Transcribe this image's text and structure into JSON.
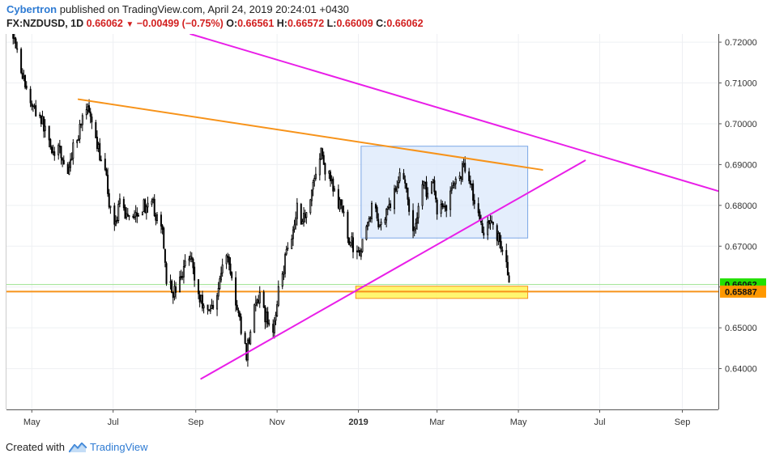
{
  "header": {
    "author": "Cybertron",
    "published_text": " published on TradingView.com, April 24, 2019 20:24:01 +0430",
    "symbol": "FX:NZDUSD, 1D",
    "last": "0.66062",
    "change": "−0.00499 (−0.75%)",
    "open_label": "O:",
    "open": "0.66561",
    "high_label": "H:",
    "high": "0.66572",
    "low_label": "L:",
    "low": "0.66009",
    "close_label": "C:",
    "close": "0.66062"
  },
  "footer": {
    "created_with": "Created with",
    "brand": "TradingView"
  },
  "colors": {
    "bullish_candle": "#ffffff",
    "bearish_candle": "#000000",
    "trendline_orange": "#f7931a",
    "trendline_magenta": "#e91ee8",
    "range_box": "#dbe8fb",
    "support_zone": "#fff560",
    "price_badge_green": "#22e000",
    "price_badge_orange": "#ff9800",
    "grid": "#eef0f3"
  },
  "chart_data": {
    "type": "candlestick",
    "symbol": "FX:NZDUSD",
    "timeframe": "1D",
    "ylim": [
      0.63,
      0.722
    ],
    "y_ticks": [
      0.64,
      0.65,
      0.66,
      0.67,
      0.68,
      0.69,
      0.7,
      0.71,
      0.72
    ],
    "y_tick_labels": [
      "0.64000",
      "0.65000",
      "0.66000",
      "0.67000",
      "0.68000",
      "0.69000",
      "0.70000",
      "0.71000",
      "0.72000"
    ],
    "x_ticks": [
      "May",
      "Jul",
      "Sep",
      "Nov",
      "2019",
      "Mar",
      "May",
      "Jul",
      "Sep"
    ],
    "x_tick_dates": [
      "2018-05-01",
      "2018-07-01",
      "2018-09-01",
      "2018-11-01",
      "2019-01-01",
      "2019-03-01",
      "2019-05-01",
      "2019-07-01",
      "2019-09-01"
    ],
    "xlim": [
      "2018-04-12",
      "2019-09-28"
    ],
    "last_price": {
      "label": "0.66062",
      "value": 0.66062
    },
    "support_level": {
      "label": "0.65887",
      "value": 0.65887
    },
    "close_path": [
      [
        "2018-04-17",
        0.7225
      ],
      [
        "2018-04-20",
        0.7185
      ],
      [
        "2018-04-24",
        0.712
      ],
      [
        "2018-04-27",
        0.708
      ],
      [
        "2018-05-02",
        0.704
      ],
      [
        "2018-05-07",
        0.702
      ],
      [
        "2018-05-11",
        0.6985
      ],
      [
        "2018-05-15",
        0.695
      ],
      [
        "2018-05-18",
        0.692
      ],
      [
        "2018-05-22",
        0.6935
      ],
      [
        "2018-05-25",
        0.69
      ],
      [
        "2018-05-29",
        0.688
      ],
      [
        "2018-06-01",
        0.695
      ],
      [
        "2018-06-05",
        0.6975
      ],
      [
        "2018-06-08",
        0.7025
      ],
      [
        "2018-06-12",
        0.7035
      ],
      [
        "2018-06-15",
        0.699
      ],
      [
        "2018-06-19",
        0.694
      ],
      [
        "2018-06-22",
        0.692
      ],
      [
        "2018-06-26",
        0.686
      ],
      [
        "2018-06-29",
        0.6785
      ],
      [
        "2018-07-03",
        0.676
      ],
      [
        "2018-07-06",
        0.68
      ],
      [
        "2018-07-10",
        0.678
      ],
      [
        "2018-07-13",
        0.678
      ],
      [
        "2018-07-17",
        0.678
      ],
      [
        "2018-07-20",
        0.679
      ],
      [
        "2018-07-24",
        0.68
      ],
      [
        "2018-07-27",
        0.679
      ],
      [
        "2018-07-31",
        0.68
      ],
      [
        "2018-08-03",
        0.676
      ],
      [
        "2018-08-07",
        0.674
      ],
      [
        "2018-08-10",
        0.6625
      ],
      [
        "2018-08-14",
        0.659
      ],
      [
        "2018-08-17",
        0.659
      ],
      [
        "2018-08-21",
        0.662
      ],
      [
        "2018-08-24",
        0.666
      ],
      [
        "2018-08-28",
        0.669
      ],
      [
        "2018-08-31",
        0.662
      ],
      [
        "2018-09-04",
        0.657
      ],
      [
        "2018-09-07",
        0.656
      ],
      [
        "2018-09-11",
        0.654
      ],
      [
        "2018-09-14",
        0.656
      ],
      [
        "2018-09-18",
        0.66
      ],
      [
        "2018-09-21",
        0.665
      ],
      [
        "2018-09-25",
        0.668
      ],
      [
        "2018-09-28",
        0.662
      ],
      [
        "2018-10-02",
        0.654
      ],
      [
        "2018-10-05",
        0.65
      ],
      [
        "2018-10-09",
        0.6435
      ],
      [
        "2018-10-12",
        0.65
      ],
      [
        "2018-10-16",
        0.656
      ],
      [
        "2018-10-19",
        0.657
      ],
      [
        "2018-10-23",
        0.653
      ],
      [
        "2018-10-26",
        0.651
      ],
      [
        "2018-10-30",
        0.65
      ],
      [
        "2018-11-02",
        0.661
      ],
      [
        "2018-11-06",
        0.665
      ],
      [
        "2018-11-09",
        0.671
      ],
      [
        "2018-11-13",
        0.674
      ],
      [
        "2018-11-16",
        0.68
      ],
      [
        "2018-11-20",
        0.676
      ],
      [
        "2018-11-23",
        0.679
      ],
      [
        "2018-11-27",
        0.684
      ],
      [
        "2018-11-30",
        0.688
      ],
      [
        "2018-12-04",
        0.693
      ],
      [
        "2018-12-07",
        0.689
      ],
      [
        "2018-12-11",
        0.686
      ],
      [
        "2018-12-14",
        0.683
      ],
      [
        "2018-12-18",
        0.68
      ],
      [
        "2018-12-21",
        0.677
      ],
      [
        "2018-12-25",
        0.672
      ],
      [
        "2018-12-28",
        0.67
      ],
      [
        "2019-01-03",
        0.669
      ],
      [
        "2019-01-07",
        0.674
      ],
      [
        "2019-01-11",
        0.68
      ],
      [
        "2019-01-15",
        0.677
      ],
      [
        "2019-01-18",
        0.675
      ],
      [
        "2019-01-22",
        0.679
      ],
      [
        "2019-01-25",
        0.681
      ],
      [
        "2019-01-29",
        0.683
      ],
      [
        "2019-02-01",
        0.689
      ],
      [
        "2019-02-05",
        0.686
      ],
      [
        "2019-02-08",
        0.677
      ],
      [
        "2019-02-12",
        0.674
      ],
      [
        "2019-02-15",
        0.68
      ],
      [
        "2019-02-19",
        0.686
      ],
      [
        "2019-02-22",
        0.682
      ],
      [
        "2019-02-26",
        0.685
      ],
      [
        "2019-03-01",
        0.679
      ],
      [
        "2019-03-05",
        0.68
      ],
      [
        "2019-03-08",
        0.68
      ],
      [
        "2019-03-12",
        0.684
      ],
      [
        "2019-03-15",
        0.686
      ],
      [
        "2019-03-19",
        0.688
      ],
      [
        "2019-03-22",
        0.69
      ],
      [
        "2019-03-26",
        0.686
      ],
      [
        "2019-03-29",
        0.681
      ],
      [
        "2019-04-02",
        0.676
      ],
      [
        "2019-04-05",
        0.674
      ],
      [
        "2019-04-09",
        0.677
      ],
      [
        "2019-04-12",
        0.675
      ],
      [
        "2019-04-16",
        0.672
      ],
      [
        "2019-04-18",
        0.67
      ],
      [
        "2019-04-22",
        0.666
      ],
      [
        "2019-04-24",
        0.6606
      ]
    ],
    "annotations": [
      {
        "type": "trendline",
        "color": "orange",
        "from": [
          "2018-06-05",
          0.706
        ],
        "to": [
          "2019-05-19",
          0.6887
        ]
      },
      {
        "type": "trendline",
        "color": "magenta",
        "from": [
          "2018-08-28",
          0.722
        ],
        "to": [
          "2019-09-28",
          0.6835
        ]
      },
      {
        "type": "trendline",
        "color": "magenta",
        "from": [
          "2018-09-05",
          0.6375
        ],
        "to": [
          "2019-06-20",
          0.691
        ]
      },
      {
        "type": "rectangle",
        "color": "light-blue",
        "from": [
          "2019-01-03",
          0.6945
        ],
        "to": [
          "2019-05-08",
          0.672
        ]
      },
      {
        "type": "rectangle",
        "color": "yellow",
        "from": [
          "2018-12-30",
          0.6602
        ],
        "to": [
          "2019-05-08",
          0.6572
        ]
      },
      {
        "type": "horizontal_line",
        "color": "orange",
        "value": 0.65887
      },
      {
        "type": "horizontal_line",
        "color": "green",
        "value": 0.66062
      }
    ]
  }
}
